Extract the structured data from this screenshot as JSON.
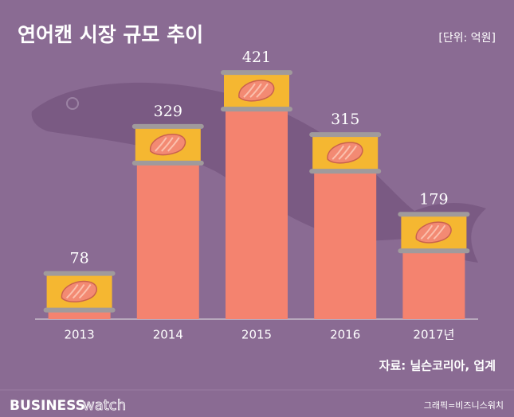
{
  "chart_data": {
    "type": "bar",
    "title": "연어캔 시장 규모 추이",
    "unit_label": "[단위: 억원]",
    "categories": [
      "2013",
      "2014",
      "2015",
      "2016",
      "2017년"
    ],
    "values": [
      78,
      329,
      421,
      315,
      179
    ],
    "color": "#f4836f",
    "ylim": [
      0,
      500
    ],
    "source": "자료: 닐슨코리아, 업계",
    "brand": [
      "BUSINESS",
      "watch"
    ],
    "credit": "그래픽=비즈니스워치"
  }
}
